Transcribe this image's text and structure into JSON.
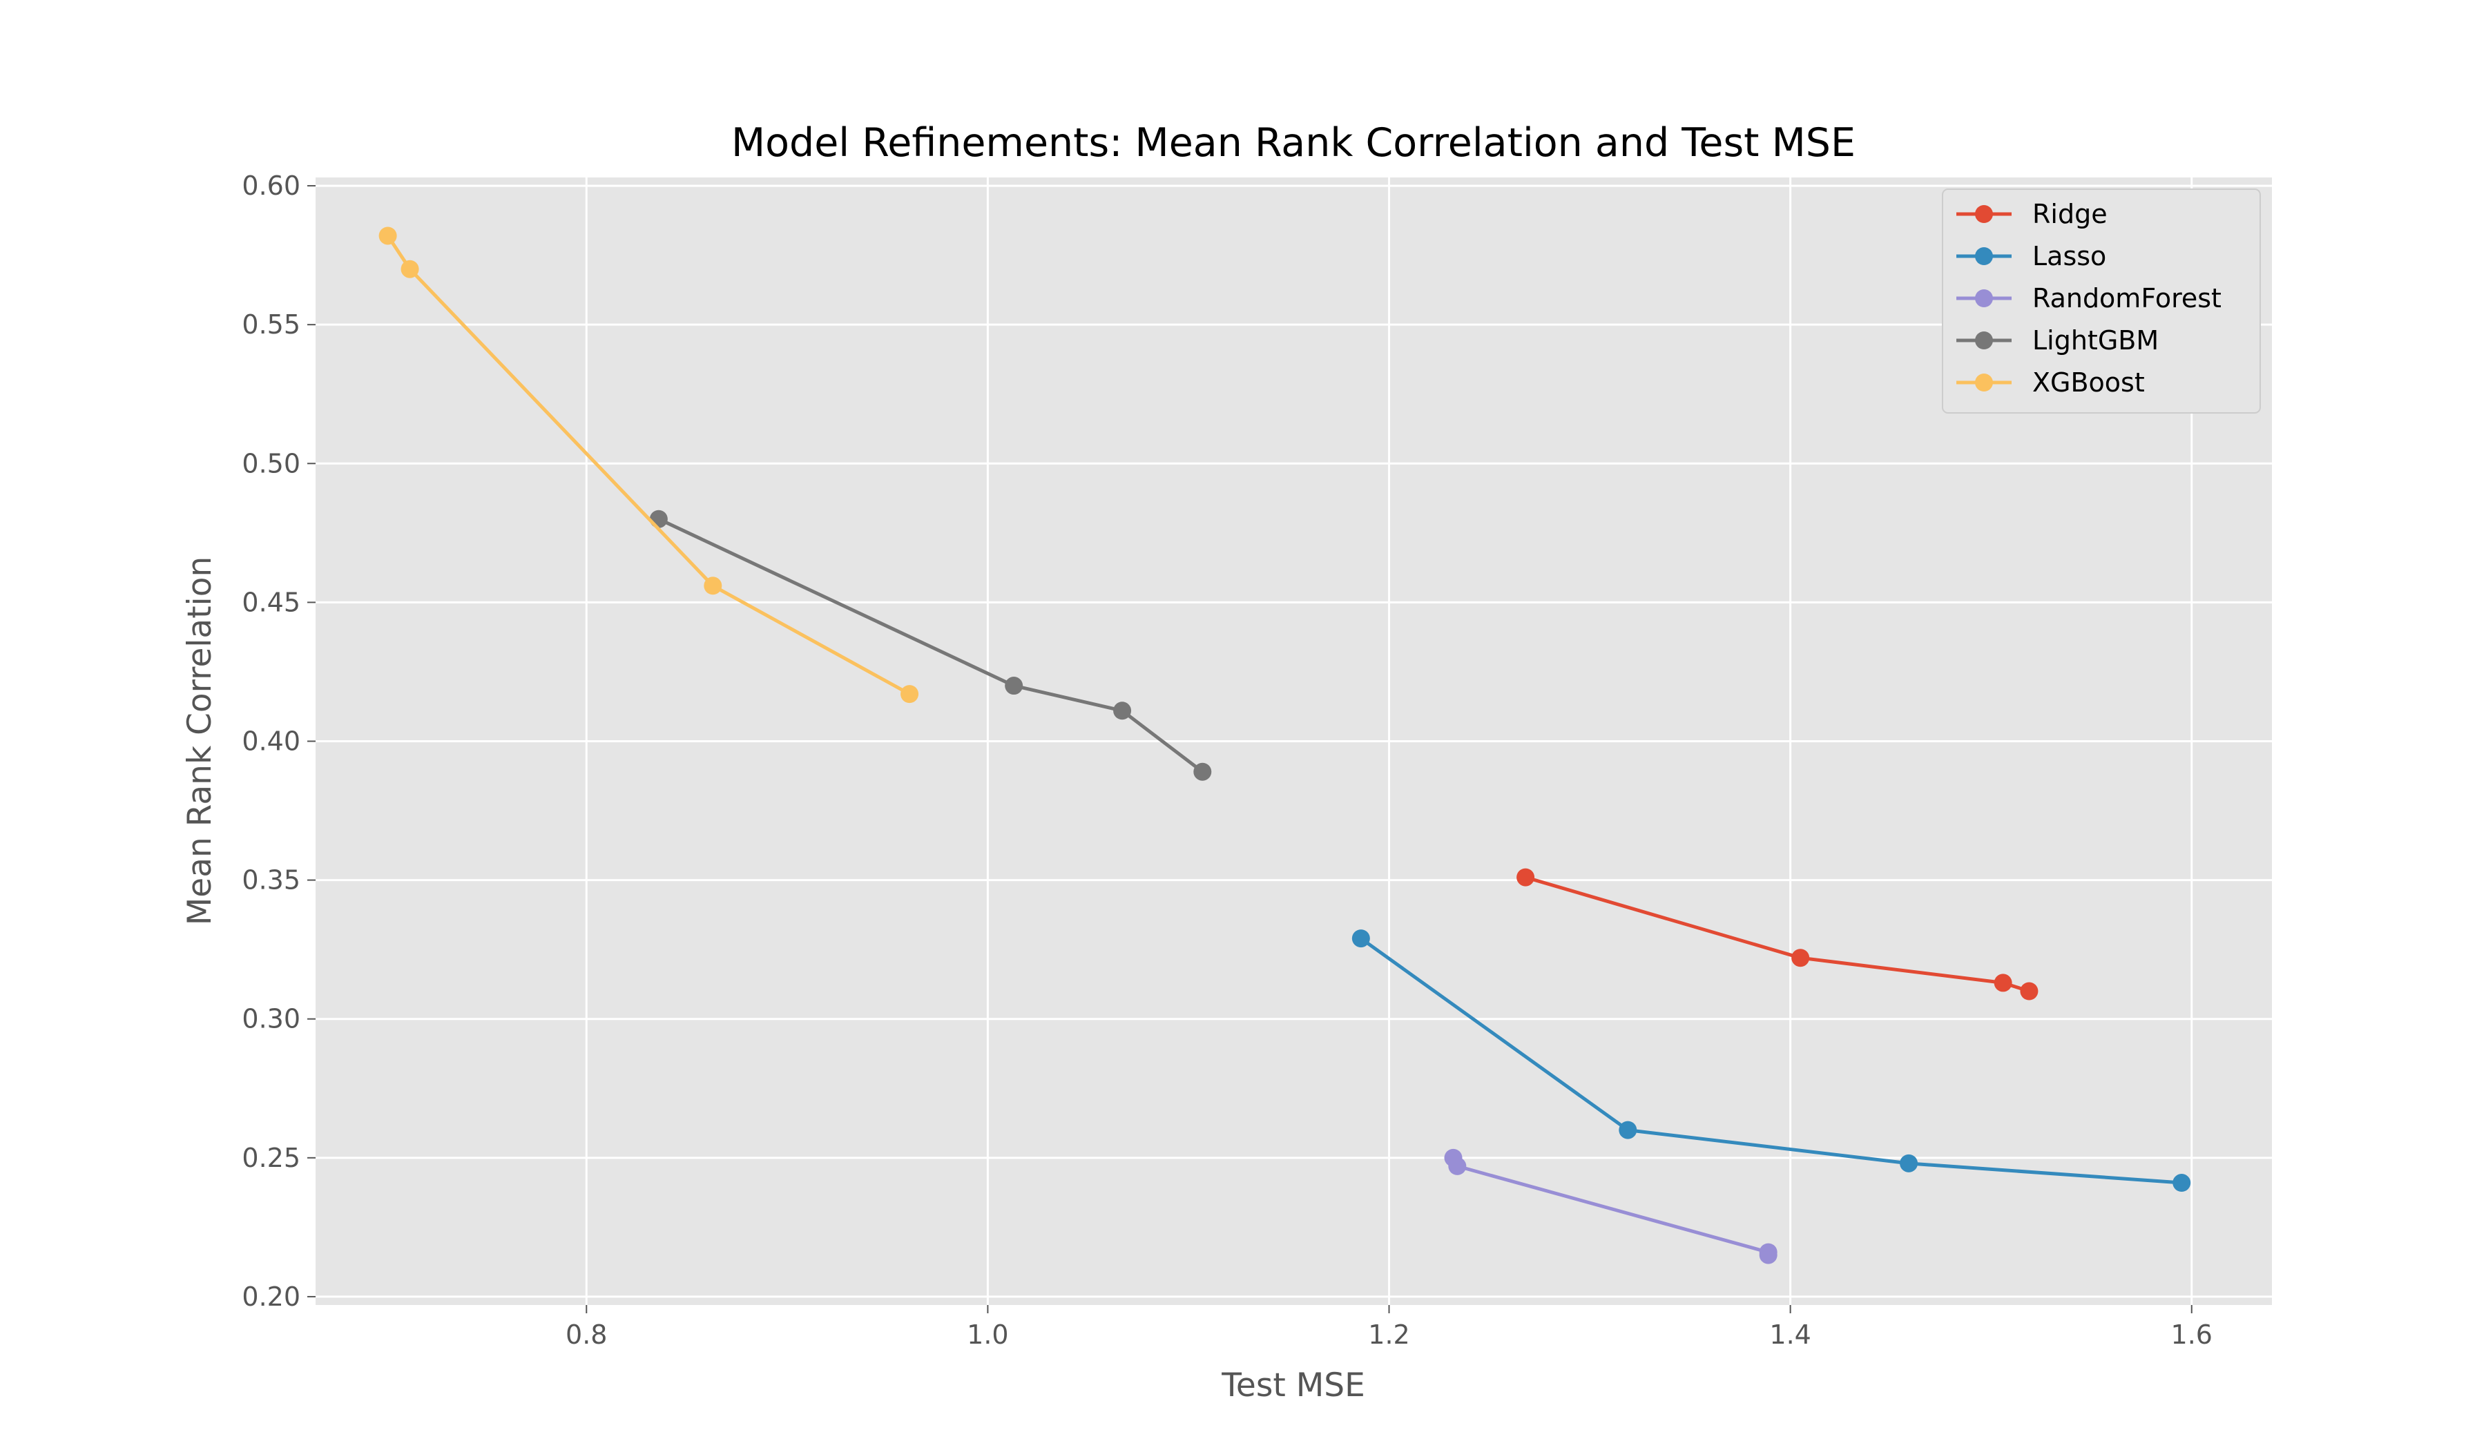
{
  "chart_data": {
    "type": "line",
    "title": "Model Refinements: Mean Rank Correlation and Test MSE",
    "xlabel": "Test MSE",
    "ylabel": "Mean Rank Correlation",
    "xlim": [
      0.665,
      1.64
    ],
    "ylim": [
      0.197,
      0.603
    ],
    "xticks": [
      0.8,
      1.0,
      1.2,
      1.4,
      1.6
    ],
    "xtick_labels": [
      "0.8",
      "1.0",
      "1.2",
      "1.4",
      "1.6"
    ],
    "yticks": [
      0.2,
      0.25,
      0.3,
      0.35,
      0.4,
      0.45,
      0.5,
      0.55,
      0.6
    ],
    "ytick_labels": [
      "0.20",
      "0.25",
      "0.30",
      "0.35",
      "0.40",
      "0.45",
      "0.50",
      "0.55",
      "0.60"
    ],
    "grid": true,
    "legend_position": "top-right",
    "series": [
      {
        "name": "Ridge",
        "color": "#E24A33",
        "points": [
          [
            1.268,
            0.351
          ],
          [
            1.405,
            0.322
          ],
          [
            1.506,
            0.313
          ],
          [
            1.519,
            0.31
          ]
        ]
      },
      {
        "name": "Lasso",
        "color": "#348ABD",
        "points": [
          [
            1.186,
            0.329
          ],
          [
            1.319,
            0.26
          ],
          [
            1.459,
            0.248
          ],
          [
            1.595,
            0.241
          ]
        ]
      },
      {
        "name": "RandomForest",
        "color": "#988ED5",
        "points": [
          [
            1.232,
            0.25
          ],
          [
            1.234,
            0.247
          ],
          [
            1.389,
            0.216
          ],
          [
            1.389,
            0.215
          ]
        ]
      },
      {
        "name": "LightGBM",
        "color": "#777777",
        "points": [
          [
            0.836,
            0.48
          ],
          [
            1.013,
            0.42
          ],
          [
            1.067,
            0.411
          ],
          [
            1.107,
            0.389
          ]
        ]
      },
      {
        "name": "XGBoost",
        "color": "#FBC15E",
        "points": [
          [
            0.701,
            0.582
          ],
          [
            0.712,
            0.57
          ],
          [
            0.863,
            0.456
          ],
          [
            0.961,
            0.417
          ]
        ]
      }
    ]
  },
  "colors": {
    "plot_background": "#E5E5E5",
    "grid": "#FFFFFF",
    "text": "#555555"
  }
}
